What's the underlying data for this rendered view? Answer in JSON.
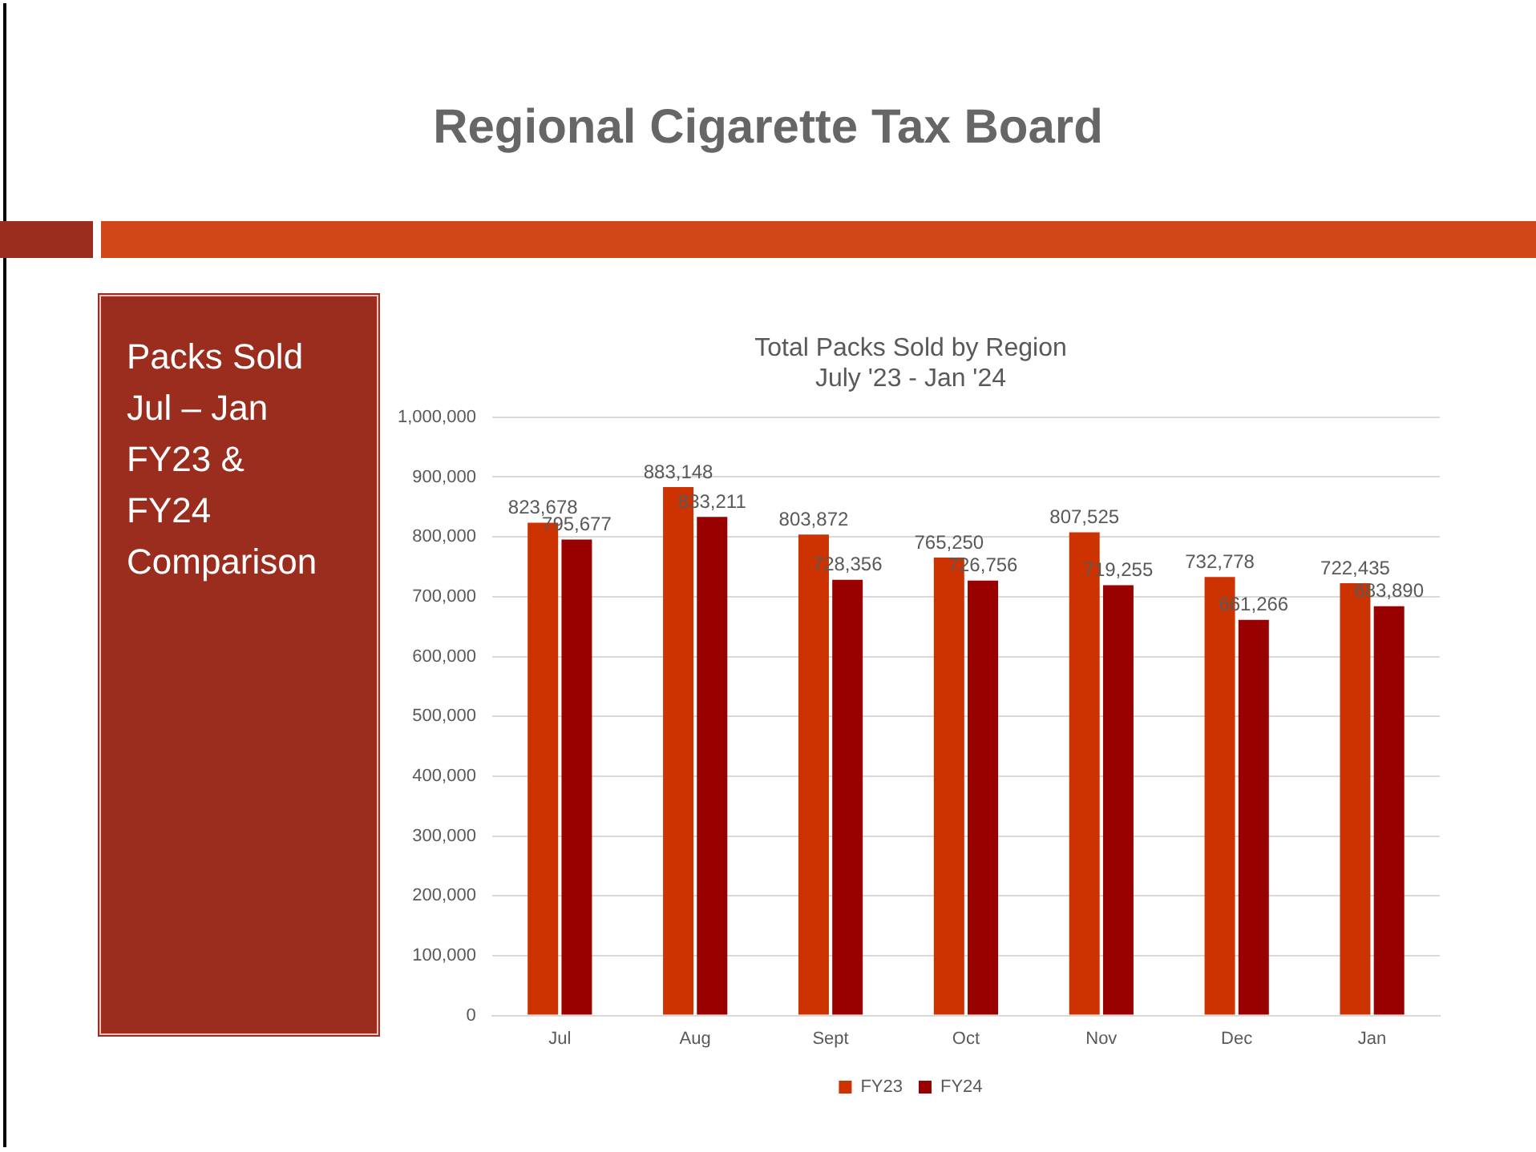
{
  "chart_data": {
    "type": "bar",
    "title": "Total Packs Sold by Region",
    "subtitle": "July '23 - Jan '24",
    "annotations": [
      "Regional Cigarette Tax Board",
      "Packs Sold\nJul – Jan\nFY23 &\nFY24\nComparison"
    ],
    "categories": [
      "Jul",
      "Aug",
      "Sept",
      "Oct",
      "Nov",
      "Dec",
      "Jan"
    ],
    "series": [
      {
        "name": "FY23",
        "color": "#cc3300",
        "values": [
          823678,
          883148,
          803872,
          765250,
          807525,
          732778,
          722435
        ],
        "value_labels": [
          "823,678",
          "883,148",
          "803,872",
          "765,250",
          "807,525",
          "732,778",
          "722,435"
        ]
      },
      {
        "name": "FY24",
        "color": "#990000",
        "values": [
          795677,
          833211,
          728356,
          726756,
          719255,
          661266,
          683890
        ],
        "value_labels": [
          "795,677",
          "833,211",
          "728,356",
          "726,756",
          "719,255",
          "661,266",
          "683,890"
        ]
      }
    ],
    "ylim": [
      0,
      1000000
    ],
    "yticks": [
      0,
      {
        "value": 100000,
        "label": "100,000"
      },
      {
        "value": 200000,
        "label": "200,000"
      },
      {
        "value": 300000,
        "label": "300,000"
      },
      {
        "value": 400000,
        "label": "400,000"
      },
      {
        "value": 500000,
        "label": "500,000"
      },
      {
        "value": 600000,
        "label": "600,000"
      },
      {
        "value": 700000,
        "label": "700,000"
      },
      {
        "value": 800000,
        "label": "800,000"
      },
      {
        "value": 900000,
        "label": "900,000"
      },
      {
        "value": 1000000,
        "label": "1,000,000"
      }
    ],
    "grid": "y",
    "legend": "bottom"
  }
}
